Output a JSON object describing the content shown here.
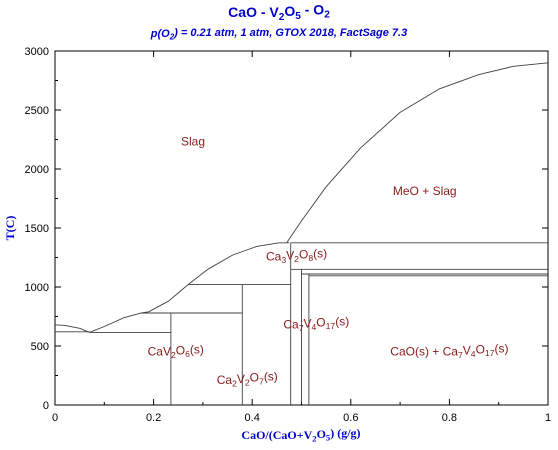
{
  "colors": {
    "title": "#0000cc",
    "region_label": "#8b1a1a",
    "tick_label": "#000000",
    "line": "#404040",
    "axis": "#000000"
  },
  "chart_data": {
    "type": "line",
    "title": {
      "parts": [
        {
          "t": "CaO - V"
        },
        {
          "t": "2",
          "sub": true
        },
        {
          "t": "O"
        },
        {
          "t": "5",
          "sub": true
        },
        {
          "t": " - O"
        },
        {
          "t": "2",
          "sub": true
        }
      ]
    },
    "subtitle": {
      "parts": [
        {
          "t": "p(O"
        },
        {
          "t": "2",
          "sub": true
        },
        {
          "t": ") = 0.21 atm, 1 atm, GTOX 2018, FactSage 7.3"
        }
      ]
    },
    "xlabel": {
      "parts": [
        {
          "t": "CaO/(CaO+V"
        },
        {
          "t": "2",
          "sub": true
        },
        {
          "t": "O"
        },
        {
          "t": "5",
          "sub": true
        },
        {
          "t": ") (g/g)"
        }
      ]
    },
    "ylabel": "T(C)",
    "xlim": [
      0,
      1
    ],
    "ylim": [
      0,
      3000
    ],
    "xticks": [
      0,
      0.2,
      0.4,
      0.6,
      0.8,
      1
    ],
    "xtick_labels": [
      "0",
      "0.2",
      "0.4",
      "0.6",
      "0.8",
      "1"
    ],
    "yticks": [
      0,
      500,
      1000,
      1500,
      2000,
      2500,
      3000
    ],
    "ytick_labels": [
      "0",
      "500",
      "1000",
      "1500",
      "2000",
      "2500",
      "3000"
    ],
    "grid": false,
    "series": [
      {
        "points": [
          [
            0,
            680
          ],
          [
            0.02,
            675
          ],
          [
            0.05,
            650
          ],
          [
            0.07,
            615
          ]
        ]
      },
      {
        "points": [
          [
            0.07,
            615
          ],
          [
            0.1,
            665
          ],
          [
            0.14,
            740
          ],
          [
            0.175,
            780
          ],
          [
            0.19,
            790
          ]
        ]
      },
      {
        "points": [
          [
            0.19,
            790
          ],
          [
            0.23,
            880
          ],
          [
            0.27,
            1020
          ],
          [
            0.31,
            1150
          ],
          [
            0.36,
            1270
          ],
          [
            0.41,
            1345
          ],
          [
            0.455,
            1375
          ],
          [
            0.475,
            1375
          ]
        ]
      },
      {
        "points": [
          [
            0.47,
            1375
          ],
          [
            0.5,
            1560
          ],
          [
            0.55,
            1850
          ],
          [
            0.62,
            2180
          ],
          [
            0.7,
            2480
          ],
          [
            0.78,
            2680
          ],
          [
            0.86,
            2800
          ],
          [
            0.93,
            2870
          ],
          [
            1,
            2900
          ]
        ]
      },
      {
        "points": [
          [
            0,
            620
          ],
          [
            0.07,
            620
          ]
        ]
      },
      {
        "points": [
          [
            0.07,
            615
          ],
          [
            0.235,
            615
          ]
        ]
      },
      {
        "points": [
          [
            0.175,
            780
          ],
          [
            0.38,
            780
          ]
        ]
      },
      {
        "points": [
          [
            0.27,
            1020
          ],
          [
            0.478,
            1020
          ]
        ]
      },
      {
        "points": [
          [
            0.478,
            1375
          ],
          [
            1,
            1375
          ]
        ]
      },
      {
        "points": [
          [
            0.478,
            1150
          ],
          [
            1,
            1150
          ]
        ]
      },
      {
        "points": [
          [
            0.5,
            1110
          ],
          [
            1,
            1110
          ]
        ]
      },
      {
        "points": [
          [
            0.515,
            1095
          ],
          [
            1,
            1095
          ]
        ]
      },
      {
        "points": [
          [
            0.235,
            0
          ],
          [
            0.235,
            780
          ]
        ]
      },
      {
        "points": [
          [
            0.38,
            0
          ],
          [
            0.38,
            1020
          ]
        ]
      },
      {
        "points": [
          [
            0.478,
            0
          ],
          [
            0.478,
            1375
          ]
        ]
      },
      {
        "points": [
          [
            0.5,
            0
          ],
          [
            0.5,
            1150
          ]
        ]
      },
      {
        "points": [
          [
            0.515,
            0
          ],
          [
            0.515,
            1110
          ]
        ]
      }
    ],
    "regions": [
      {
        "x": 0.28,
        "y": 2200,
        "parts": [
          {
            "t": "Slag"
          }
        ]
      },
      {
        "x": 0.75,
        "y": 1780,
        "parts": [
          {
            "t": "MeO + Slag"
          }
        ]
      },
      {
        "x": 0.49,
        "y": 1225,
        "parts": [
          {
            "t": "Ca"
          },
          {
            "t": "3",
            "sub": true
          },
          {
            "t": "V"
          },
          {
            "t": "2",
            "sub": true
          },
          {
            "t": "O"
          },
          {
            "t": "8",
            "sub": true
          },
          {
            "t": "(s)"
          }
        ]
      },
      {
        "x": 0.53,
        "y": 650,
        "parts": [
          {
            "t": "Ca"
          },
          {
            "t": "7",
            "sub": true
          },
          {
            "t": "V"
          },
          {
            "t": "4",
            "sub": true
          },
          {
            "t": "O"
          },
          {
            "t": "17",
            "sub": true
          },
          {
            "t": "(s)"
          }
        ]
      },
      {
        "x": 0.8,
        "y": 420,
        "parts": [
          {
            "t": "CaO(s) + Ca"
          },
          {
            "t": "7",
            "sub": true
          },
          {
            "t": "V"
          },
          {
            "t": "4",
            "sub": true
          },
          {
            "t": "O"
          },
          {
            "t": "17",
            "sub": true
          },
          {
            "t": "(s)"
          }
        ]
      },
      {
        "x": 0.245,
        "y": 420,
        "parts": [
          {
            "t": "CaV"
          },
          {
            "t": "2",
            "sub": true
          },
          {
            "t": "O"
          },
          {
            "t": "6",
            "sub": true
          },
          {
            "t": "(s)"
          }
        ]
      },
      {
        "x": 0.39,
        "y": 180,
        "parts": [
          {
            "t": "Ca"
          },
          {
            "t": "2",
            "sub": true
          },
          {
            "t": "V"
          },
          {
            "t": "2",
            "sub": true
          },
          {
            "t": "O"
          },
          {
            "t": "7",
            "sub": true
          },
          {
            "t": "(s)"
          }
        ]
      }
    ]
  }
}
